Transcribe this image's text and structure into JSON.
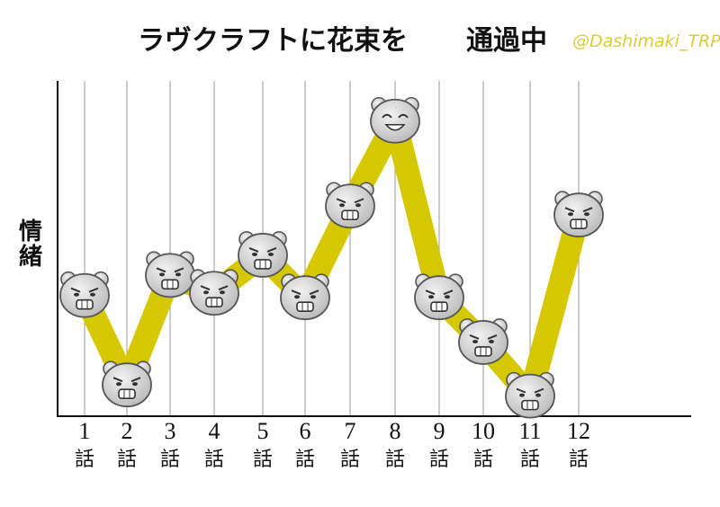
{
  "chart_data": {
    "type": "line",
    "title": "ラヴクラフトに花束を",
    "subtitle": "通過中",
    "credit": "@Dashimaki_TRPG",
    "ylabel": "情緒",
    "x_numbers": [
      "1",
      "2",
      "3",
      "4",
      "5",
      "6",
      "7",
      "8",
      "9",
      "10",
      "11",
      "12"
    ],
    "x_suffix": "話",
    "values": [
      5.4,
      1.4,
      6.3,
      5.5,
      7.2,
      5.3,
      9.4,
      13.2,
      5.3,
      3.3,
      0.9,
      9.0
    ],
    "ylim": [
      0,
      15
    ],
    "grid": "vertical",
    "colors": {
      "line": "#d6c800",
      "face_fill": "#c4c4c4",
      "face_stroke": "#555555",
      "grid": "#9a9a9a",
      "axis": "#111111"
    }
  }
}
